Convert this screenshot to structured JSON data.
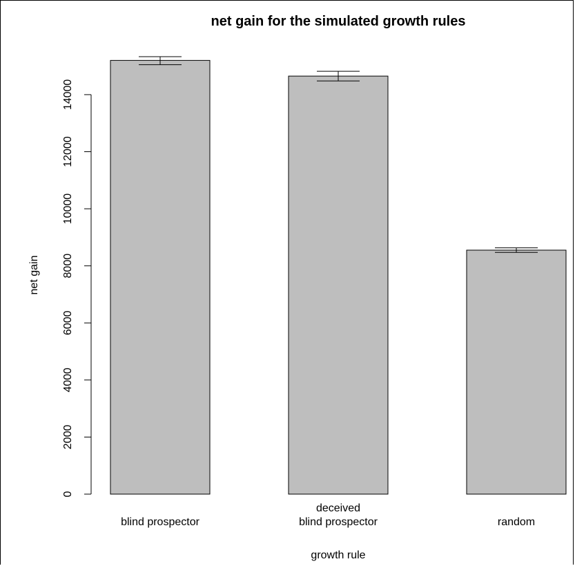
{
  "chart_data": {
    "type": "bar",
    "title": "net gain for the simulated growth rules",
    "xlabel": "growth rule",
    "ylabel": "net gain",
    "categories": [
      [
        "blind prospector"
      ],
      [
        "deceived",
        "blind prospector"
      ],
      [
        "random"
      ]
    ],
    "values": [
      15200,
      14650,
      8550
    ],
    "error_low": [
      15050,
      14480,
      8470
    ],
    "error_high": [
      15330,
      14820,
      8630
    ],
    "ylim": [
      0,
      15500
    ],
    "yticks": [
      0,
      2000,
      4000,
      6000,
      8000,
      10000,
      12000,
      14000
    ],
    "bar_color": "#bebebe",
    "grid": false
  }
}
